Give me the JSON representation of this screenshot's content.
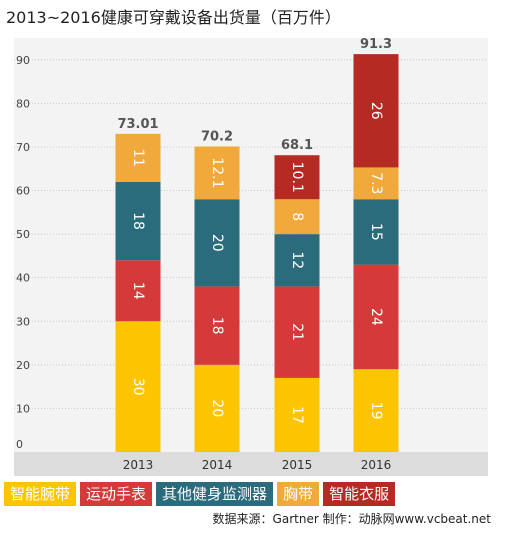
{
  "chart_data": {
    "type": "bar",
    "stacked": true,
    "title": "2013~2016健康可穿戴设备出货量（百万件）",
    "categories": [
      "2013",
      "2014",
      "2015",
      "2016"
    ],
    "totals": [
      "73.01",
      "70.2",
      "68.1",
      "91.3"
    ],
    "ylim": [
      0,
      95
    ],
    "yticks": [
      0,
      10,
      20,
      30,
      40,
      50,
      60,
      70,
      80,
      90
    ],
    "grid": true,
    "series": [
      {
        "name": "智能腕带",
        "color": "#FDC500",
        "values": [
          30,
          20,
          17,
          19
        ]
      },
      {
        "name": "运动手表",
        "color": "#D43A3A",
        "values": [
          14,
          18,
          21,
          24
        ]
      },
      {
        "name": "其他健身监测器",
        "color": "#2A6B7C",
        "values": [
          18,
          20,
          12,
          15
        ]
      },
      {
        "name": "胸带",
        "color": "#F2A93B",
        "values": [
          11,
          12.1,
          8,
          7.3
        ]
      },
      {
        "name": "智能衣服",
        "color": "#B52A22",
        "values": [
          null,
          null,
          10.1,
          26
        ]
      }
    ],
    "segment_labels": [
      [
        "30",
        "20",
        "17",
        "19"
      ],
      [
        "14",
        "18",
        "21",
        "24"
      ],
      [
        "18",
        "20",
        "12",
        "15"
      ],
      [
        "11",
        "12.1",
        "8",
        "7.3"
      ],
      [
        "",
        "",
        "10.1",
        "26"
      ]
    ],
    "legend_position": "bottom-left"
  },
  "source": "数据来源：Gartner   制作：动脉网www.vcbeat.net"
}
